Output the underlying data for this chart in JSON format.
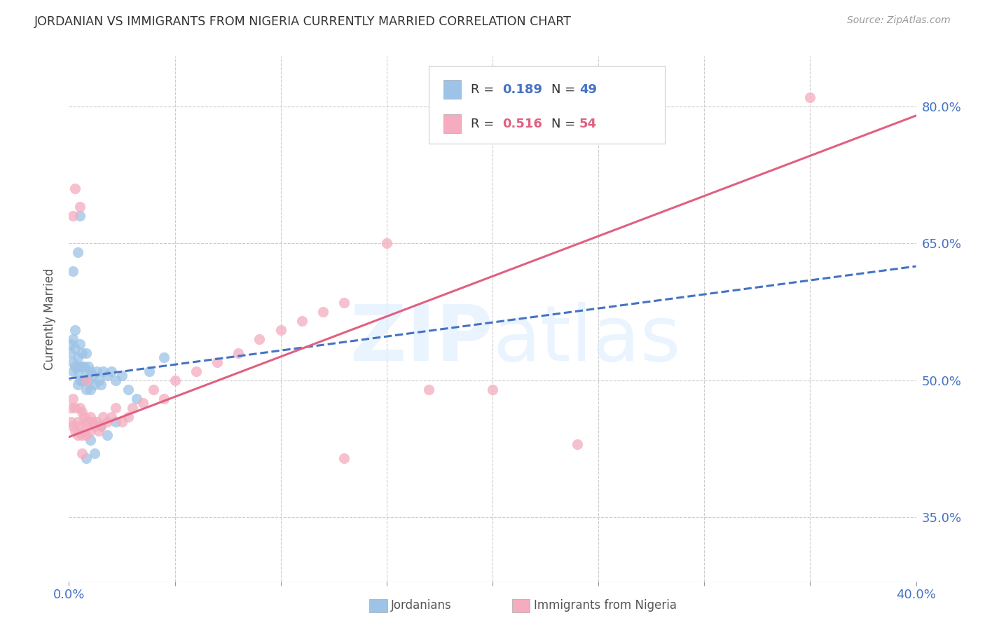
{
  "title": "JORDANIAN VS IMMIGRANTS FROM NIGERIA CURRENTLY MARRIED CORRELATION CHART",
  "source": "Source: ZipAtlas.com",
  "ylabel": "Currently Married",
  "y_ticks": [
    0.35,
    0.5,
    0.65,
    0.8
  ],
  "y_tick_labels": [
    "35.0%",
    "50.0%",
    "65.0%",
    "80.0%"
  ],
  "legend_r1": "R = 0.189",
  "legend_n1": "N = 49",
  "legend_r2": "R = 0.516",
  "legend_n2": "N = 54",
  "legend_label1": "Jordanians",
  "legend_label2": "Immigrants from Nigeria",
  "blue_color": "#9DC3E6",
  "pink_color": "#F4ACBE",
  "blue_line_color": "#4472C4",
  "pink_line_color": "#E06080",
  "axis_color": "#4472C4",
  "xlim": [
    0.0,
    0.4
  ],
  "ylim": [
    0.28,
    0.855
  ],
  "blue_trend_x": [
    0.0,
    0.4
  ],
  "blue_trend_y": [
    0.502,
    0.625
  ],
  "pink_trend_x": [
    0.0,
    0.4
  ],
  "pink_trend_y": [
    0.438,
    0.79
  ],
  "blue_scatter_x": [
    0.001,
    0.001,
    0.002,
    0.002,
    0.002,
    0.003,
    0.003,
    0.003,
    0.004,
    0.004,
    0.004,
    0.005,
    0.005,
    0.005,
    0.006,
    0.006,
    0.006,
    0.007,
    0.007,
    0.008,
    0.008,
    0.008,
    0.009,
    0.009,
    0.01,
    0.01,
    0.011,
    0.012,
    0.013,
    0.014,
    0.015,
    0.016,
    0.018,
    0.02,
    0.022,
    0.025,
    0.028,
    0.032,
    0.038,
    0.045,
    0.002,
    0.004,
    0.008,
    0.01,
    0.012,
    0.015,
    0.018,
    0.022,
    0.005
  ],
  "blue_scatter_y": [
    0.54,
    0.53,
    0.545,
    0.52,
    0.51,
    0.555,
    0.535,
    0.515,
    0.525,
    0.51,
    0.495,
    0.54,
    0.515,
    0.5,
    0.53,
    0.515,
    0.5,
    0.515,
    0.5,
    0.53,
    0.51,
    0.49,
    0.515,
    0.5,
    0.51,
    0.49,
    0.505,
    0.495,
    0.51,
    0.5,
    0.495,
    0.51,
    0.505,
    0.51,
    0.5,
    0.505,
    0.49,
    0.48,
    0.51,
    0.525,
    0.62,
    0.64,
    0.415,
    0.435,
    0.42,
    0.45,
    0.44,
    0.455,
    0.68
  ],
  "pink_scatter_x": [
    0.001,
    0.001,
    0.002,
    0.002,
    0.003,
    0.003,
    0.004,
    0.004,
    0.005,
    0.005,
    0.006,
    0.006,
    0.007,
    0.007,
    0.008,
    0.008,
    0.009,
    0.01,
    0.01,
    0.011,
    0.012,
    0.013,
    0.014,
    0.015,
    0.016,
    0.018,
    0.02,
    0.022,
    0.025,
    0.028,
    0.03,
    0.035,
    0.04,
    0.045,
    0.05,
    0.06,
    0.07,
    0.08,
    0.09,
    0.1,
    0.11,
    0.12,
    0.13,
    0.002,
    0.005,
    0.008,
    0.35,
    0.15,
    0.2,
    0.17,
    0.003,
    0.006,
    0.13,
    0.24
  ],
  "pink_scatter_y": [
    0.47,
    0.455,
    0.48,
    0.45,
    0.47,
    0.445,
    0.455,
    0.44,
    0.47,
    0.45,
    0.465,
    0.44,
    0.46,
    0.445,
    0.455,
    0.44,
    0.455,
    0.46,
    0.445,
    0.455,
    0.45,
    0.455,
    0.445,
    0.45,
    0.46,
    0.455,
    0.46,
    0.47,
    0.455,
    0.46,
    0.47,
    0.475,
    0.49,
    0.48,
    0.5,
    0.51,
    0.52,
    0.53,
    0.545,
    0.555,
    0.565,
    0.575,
    0.585,
    0.68,
    0.69,
    0.5,
    0.81,
    0.65,
    0.49,
    0.49,
    0.71,
    0.42,
    0.415,
    0.43
  ]
}
